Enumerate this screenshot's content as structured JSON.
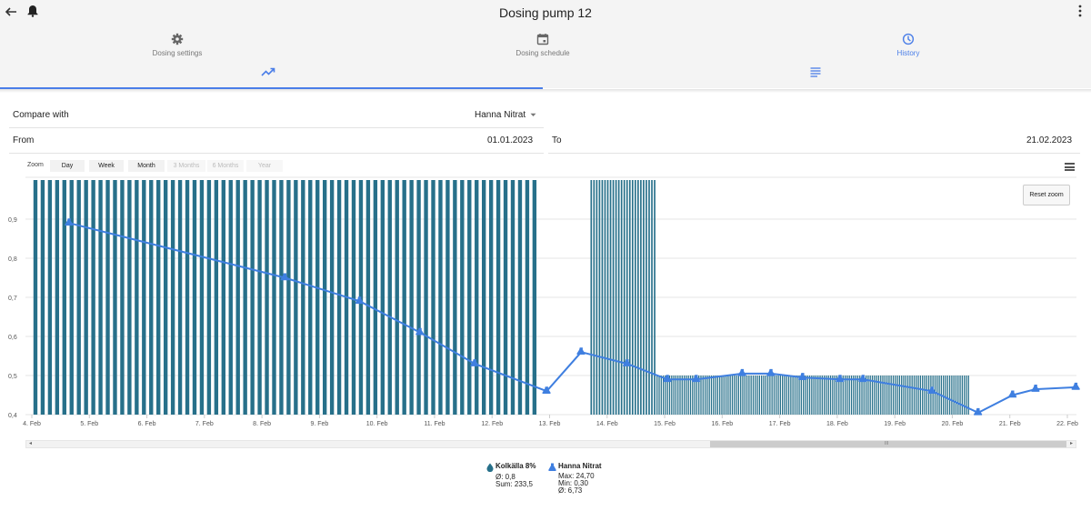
{
  "header": {
    "title": "Dosing pump 12"
  },
  "nav_tabs": [
    {
      "label": "Dosing settings"
    },
    {
      "label": "Dosing schedule"
    },
    {
      "label": "History"
    }
  ],
  "colors": {
    "accent": "#4a7ee8",
    "bars": "#27708a",
    "line": "#3f7fe0"
  },
  "icons": [
    "back-arrow-icon",
    "bell-icon",
    "more-vert-icon",
    "gear-icon",
    "calendar-icon",
    "history-icon",
    "trending-up-icon",
    "list-icon",
    "hamburger-icon"
  ],
  "form": {
    "compare_label": "Compare with",
    "compare_value": "Hanna Nitrat",
    "from_label": "From",
    "from_value": "01.01.2023",
    "to_label": "To",
    "to_value": "21.02.2023"
  },
  "zoom": {
    "label": "Zoom",
    "buttons": [
      "Day",
      "Week",
      "Month",
      "3 Months",
      "6 Months",
      "Year"
    ],
    "reset_label": "Reset zoom"
  },
  "chart_data": {
    "type": "line",
    "x_ticks": [
      "4. Feb",
      "5. Feb",
      "6. Feb",
      "7. Feb",
      "8. Feb",
      "9. Feb",
      "10. Feb",
      "11. Feb",
      "12. Feb",
      "13. Feb",
      "14. Feb",
      "15. Feb",
      "16. Feb",
      "17. Feb",
      "18. Feb",
      "19. Feb",
      "20. Feb",
      "21. Feb",
      "22. Feb"
    ],
    "y_ticks": [
      "0,4",
      "0,5",
      "0,6",
      "0,7",
      "0,8",
      "0,9"
    ],
    "ylim": [
      0.4,
      1.0
    ],
    "grid": true,
    "series": [
      {
        "name": "Hanna Nitrat",
        "chart": "line with markers",
        "x": [
          4.65,
          8.4,
          9.7,
          10.75,
          11.7,
          12.95,
          13.55,
          14.35,
          15.05,
          15.55,
          16.35,
          16.85,
          17.4,
          18.05,
          18.45,
          19.65,
          20.45,
          21.05,
          21.45,
          22.15
        ],
        "values": [
          0.89,
          0.75,
          0.69,
          0.61,
          0.53,
          0.46,
          0.56,
          0.53,
          0.49,
          0.49,
          0.505,
          0.505,
          0.495,
          0.49,
          0.49,
          0.46,
          0.405,
          0.45,
          0.465,
          0.47
        ]
      },
      {
        "name": "Kolkälla 8%",
        "chart": "column",
        "segments": [
          {
            "from": 4.0,
            "to": 12.8,
            "value": 1.0,
            "bars": 70
          },
          {
            "from": 13.7,
            "to": 14.85,
            "value": 1.0,
            "bars": 24
          },
          {
            "from": 14.85,
            "to": 20.3,
            "value": 0.5,
            "bars": 150
          }
        ]
      }
    ]
  },
  "legend": [
    {
      "name": "Kolkälla 8%",
      "lines": [
        "Ø: 0,8",
        "Sum: 233,5"
      ]
    },
    {
      "name": "Hanna Nitrat",
      "lines": [
        "Max: 24,70",
        "Min: 0,30",
        "Ø: 6,73"
      ]
    }
  ]
}
